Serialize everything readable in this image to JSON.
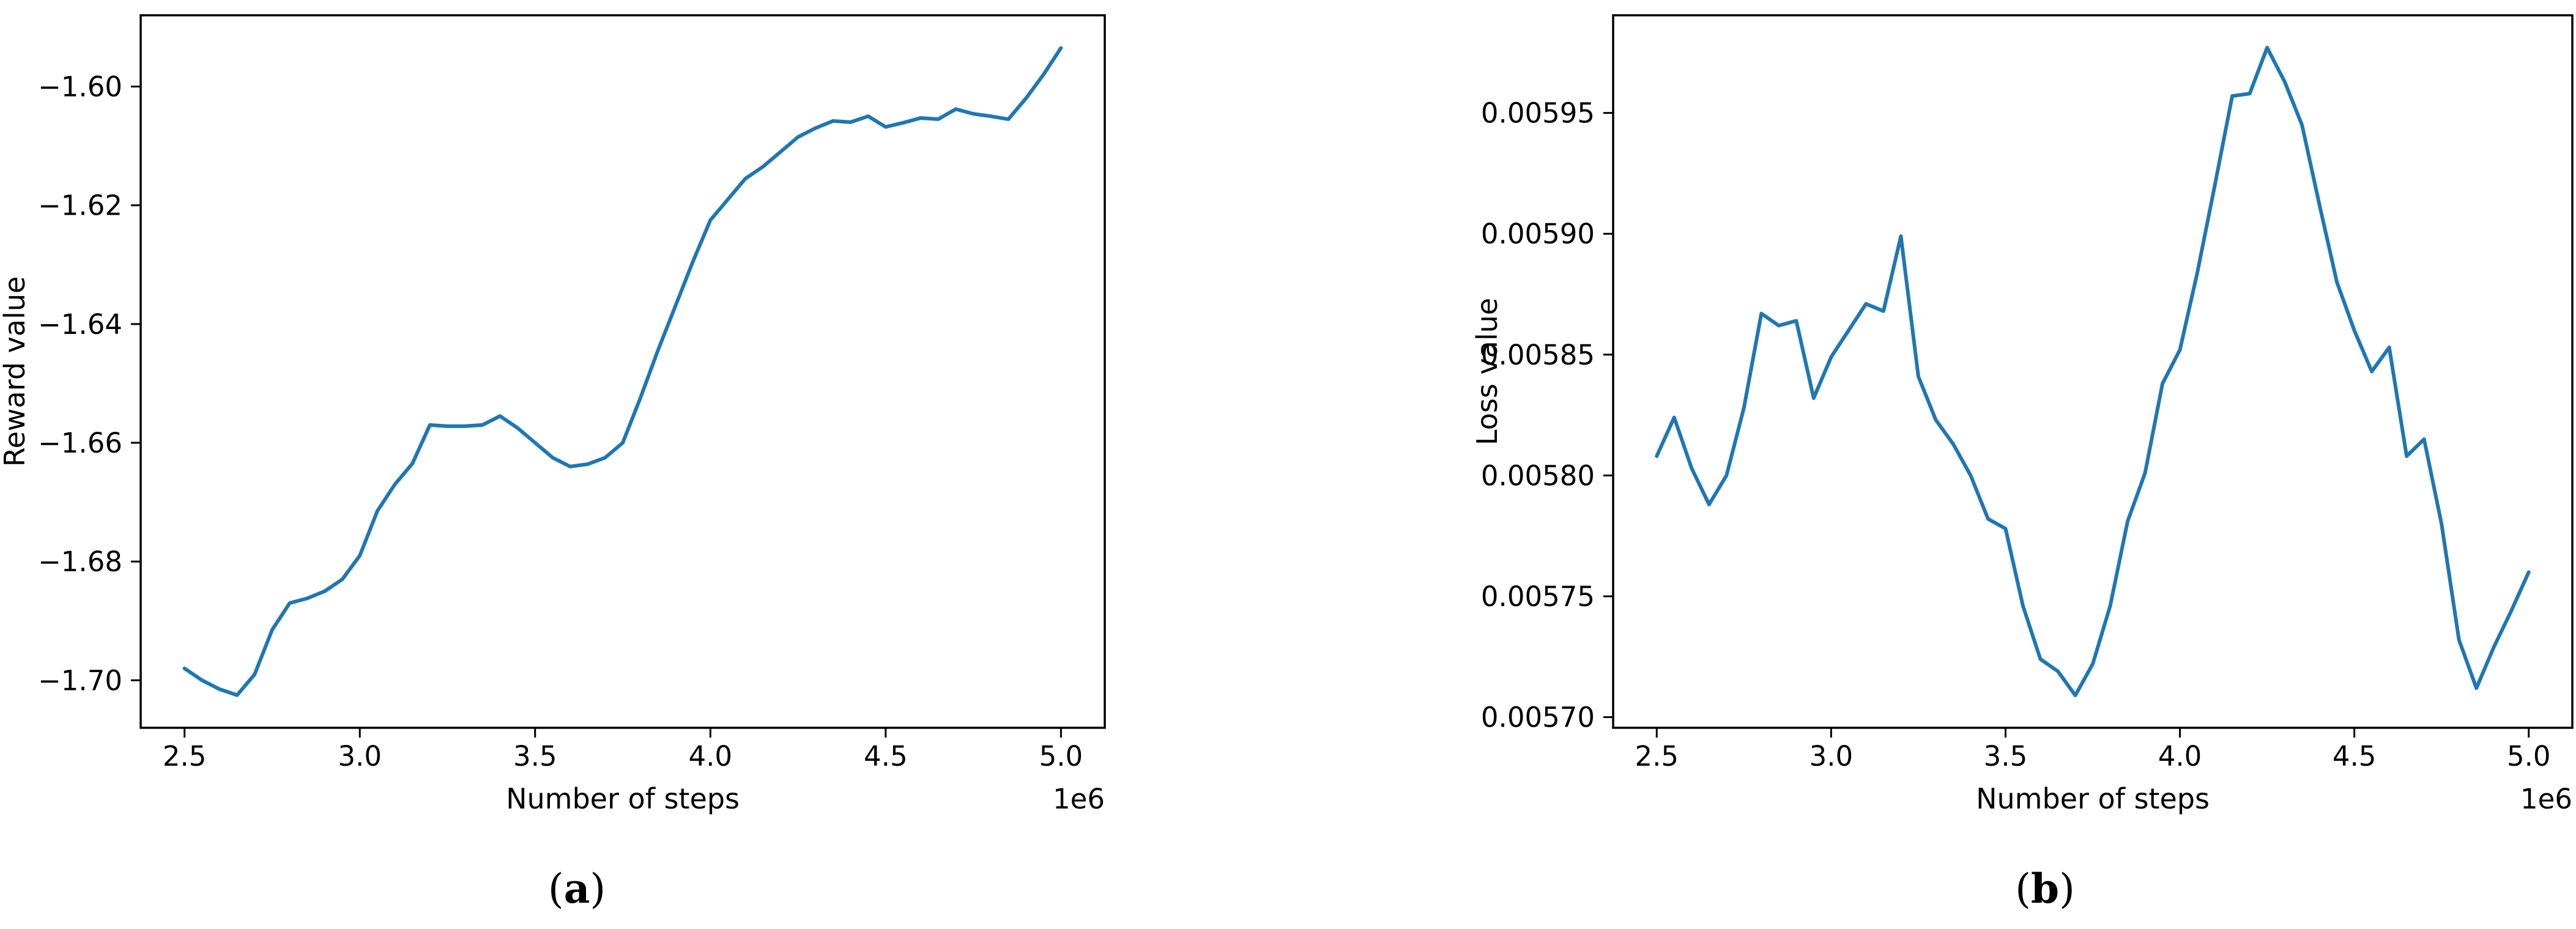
{
  "figure": {
    "background_color": "#ffffff",
    "line_color": "#1f77b4",
    "axis_color": "#000000",
    "captions": [
      {
        "open": "(",
        "letter": "a",
        "close": ")"
      },
      {
        "open": "(",
        "letter": "b",
        "close": ")"
      }
    ]
  },
  "chart_data": [
    {
      "type": "line",
      "title": "",
      "xlabel": "Number of steps",
      "ylabel": "Reward value",
      "x_offset_label": "1e6",
      "xlim": [
        2.375,
        5.125
      ],
      "ylim": [
        -1.708,
        -1.588
      ],
      "grid": false,
      "legend": null,
      "xticks": [
        2.5,
        3.0,
        3.5,
        4.0,
        4.5,
        5.0
      ],
      "xtick_labels": [
        "2.5",
        "3.0",
        "3.5",
        "4.0",
        "4.5",
        "5.0"
      ],
      "yticks": [
        -1.7,
        -1.68,
        -1.66,
        -1.64,
        -1.62,
        -1.6
      ],
      "ytick_labels": [
        "−1.70",
        "−1.68",
        "−1.66",
        "−1.64",
        "−1.62",
        "−1.60"
      ],
      "x": [
        2.5,
        2.55,
        2.6,
        2.65,
        2.7,
        2.75,
        2.8,
        2.85,
        2.9,
        2.95,
        3.0,
        3.05,
        3.1,
        3.15,
        3.2,
        3.25,
        3.3,
        3.35,
        3.4,
        3.45,
        3.5,
        3.55,
        3.6,
        3.65,
        3.7,
        3.75,
        3.8,
        3.85,
        3.9,
        3.95,
        4.0,
        4.05,
        4.1,
        4.15,
        4.2,
        4.25,
        4.3,
        4.35,
        4.4,
        4.45,
        4.5,
        4.55,
        4.6,
        4.65,
        4.7,
        4.75,
        4.8,
        4.85,
        4.9,
        4.95,
        5.0
      ],
      "y": [
        -1.698,
        -1.7,
        -1.7015,
        -1.7025,
        -1.699,
        -1.6915,
        -1.687,
        -1.6862,
        -1.685,
        -1.683,
        -1.679,
        -1.6715,
        -1.667,
        -1.6635,
        -1.657,
        -1.6572,
        -1.6572,
        -1.657,
        -1.6555,
        -1.6575,
        -1.66,
        -1.6625,
        -1.664,
        -1.6636,
        -1.6625,
        -1.66,
        -1.6525,
        -1.6445,
        -1.637,
        -1.6295,
        -1.6225,
        -1.619,
        -1.6155,
        -1.6135,
        -1.611,
        -1.6085,
        -1.607,
        -1.6058,
        -1.606,
        -1.605,
        -1.6068,
        -1.6061,
        -1.6053,
        -1.6055,
        -1.6038,
        -1.6046,
        -1.605,
        -1.6055,
        -1.602,
        -1.598,
        -1.5935
      ]
    },
    {
      "type": "line",
      "title": "",
      "xlabel": "Number of steps",
      "ylabel": "Loss value",
      "x_offset_label": "1e6",
      "xlim": [
        2.375,
        5.125
      ],
      "ylim": [
        0.0056956,
        0.0059904
      ],
      "grid": false,
      "legend": null,
      "xticks": [
        2.5,
        3.0,
        3.5,
        4.0,
        4.5,
        5.0
      ],
      "xtick_labels": [
        "2.5",
        "3.0",
        "3.5",
        "4.0",
        "4.5",
        "5.0"
      ],
      "yticks": [
        0.0057,
        0.00575,
        0.0058,
        0.00585,
        0.0059,
        0.00595
      ],
      "ytick_labels": [
        "0.00570",
        "0.00575",
        "0.00580",
        "0.00585",
        "0.00590",
        "0.00595"
      ],
      "x": [
        2.5,
        2.55,
        2.6,
        2.65,
        2.7,
        2.75,
        2.8,
        2.85,
        2.9,
        2.95,
        3.0,
        3.05,
        3.1,
        3.15,
        3.2,
        3.25,
        3.3,
        3.35,
        3.4,
        3.45,
        3.5,
        3.55,
        3.6,
        3.65,
        3.7,
        3.75,
        3.8,
        3.85,
        3.9,
        3.95,
        4.0,
        4.05,
        4.1,
        4.15,
        4.2,
        4.25,
        4.3,
        4.35,
        4.4,
        4.45,
        4.5,
        4.55,
        4.6,
        4.65,
        4.7,
        4.75,
        4.8,
        4.85,
        4.9,
        4.95,
        5.0
      ],
      "y": [
        0.005808,
        0.005824,
        0.005803,
        0.005788,
        0.0058,
        0.005828,
        0.005867,
        0.005862,
        0.005864,
        0.005832,
        0.005849,
        0.00586,
        0.005871,
        0.005868,
        0.005899,
        0.005841,
        0.005823,
        0.005813,
        0.0058,
        0.005782,
        0.005778,
        0.005746,
        0.005724,
        0.005719,
        0.005709,
        0.005722,
        0.005746,
        0.005781,
        0.005801,
        0.005838,
        0.005852,
        0.005884,
        0.00592,
        0.005957,
        0.005958,
        0.005977,
        0.005963,
        0.005945,
        0.005912,
        0.00588,
        0.00586,
        0.005843,
        0.005853,
        0.005808,
        0.005815,
        0.00578,
        0.005732,
        0.005712,
        0.005729,
        0.005744,
        0.00576
      ]
    }
  ]
}
